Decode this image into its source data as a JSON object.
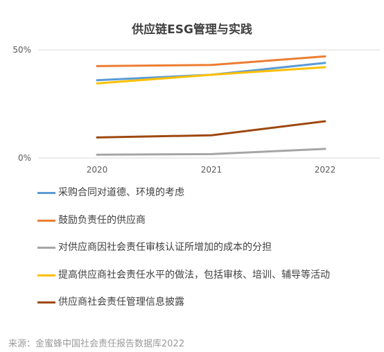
{
  "chart_data": {
    "type": "line",
    "title": "供应链ESG管理与实践",
    "x": [
      "2020",
      "2021",
      "2022"
    ],
    "yticks": [
      "0%",
      "50%"
    ],
    "ylim": [
      0,
      50
    ],
    "grid": true,
    "legend_position": "bottom",
    "series": [
      {
        "name": "采购合同对道德、环境的考虑",
        "color": "#5B9BD5",
        "values": [
          36,
          38.5,
          44
        ]
      },
      {
        "name": "鼓励负责任的供应商",
        "color": "#ED7D31",
        "values": [
          42.5,
          43,
          47
        ]
      },
      {
        "name": "对供应商因社会责任审核认证所增加的成本的分担",
        "color": "#A5A5A5",
        "values": [
          1.5,
          1.8,
          4.2
        ]
      },
      {
        "name": "提高供应商社会责任水平的做法，包括审核、培训、辅导等活动",
        "color": "#FFC000",
        "values": [
          34.5,
          38.5,
          42
        ]
      },
      {
        "name": "供应商社会责任管理信息披露",
        "color": "#9E480E",
        "values": [
          9.5,
          10.5,
          17
        ]
      }
    ]
  },
  "source": "来源：金蜜蜂中国社会责任报告数据库2022"
}
